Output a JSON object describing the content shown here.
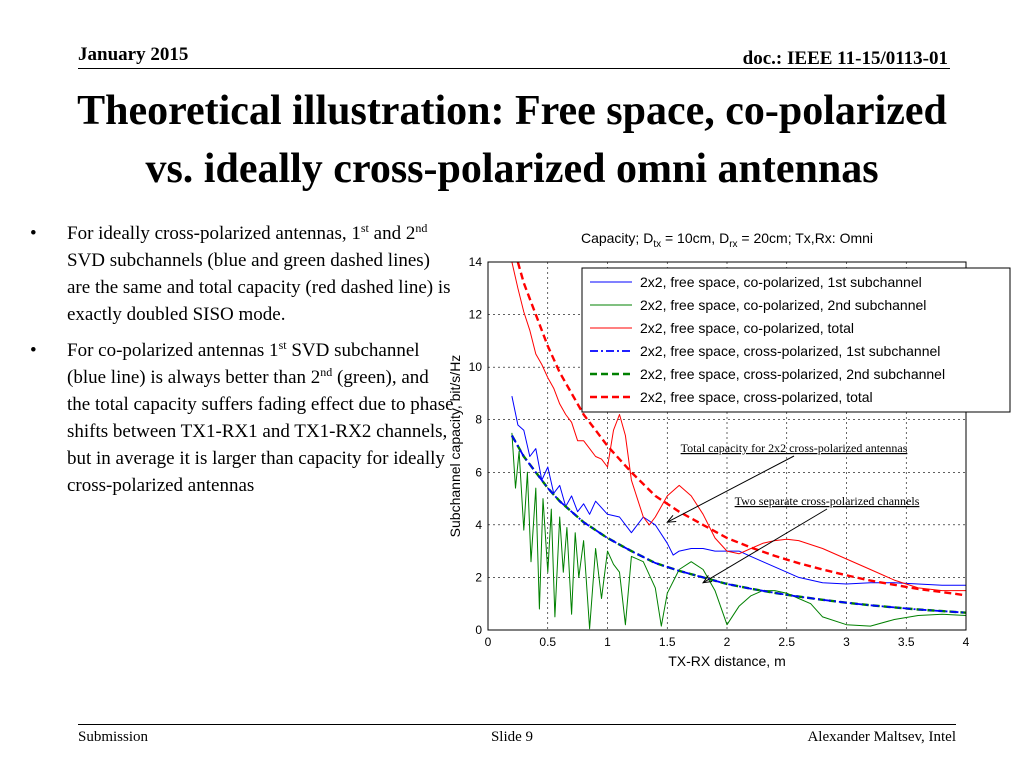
{
  "header": {
    "date": "January 2015",
    "doc": "doc.: IEEE 11-15/0113-01"
  },
  "title": {
    "line1": "Theoretical illustration: Free space, co-polarized",
    "line2": "vs. ideally cross-polarized omni antennas"
  },
  "bullets": [
    {
      "pre": "For ideally cross-polarized antennas, 1",
      "sup1": "st",
      "mid": " and 2",
      "sup2": "nd",
      "post": " SVD subchannels (blue and green dashed lines) are the same and total capacity (red dashed line) is exactly doubled SISO mode."
    },
    {
      "pre": "For co-polarized antennas 1",
      "sup1": "st",
      "mid": " SVD subchannel (blue line) is always better than 2",
      "sup2": "nd",
      "post": " (green), and the total capacity suffers fading effect due to phase shifts between TX1-RX1 and TX1-RX2 channels, but in average it is larger than capacity for ideally cross-polarized antennas"
    }
  ],
  "footer": {
    "left": "Submission",
    "center": "Slide 9",
    "right": "Alexander Maltsev, Intel"
  },
  "chart_data": {
    "type": "line",
    "title_parts": {
      "a": "Capacity; D",
      "a_sub": "tx",
      "b": " = 10cm, D",
      "b_sub": "rx",
      "c": " = 20cm; Tx,Rx: Omni"
    },
    "xlabel": "TX-RX distance, m",
    "ylabel": "Subchannel capacity, bit/s/Hz",
    "xlim": [
      0,
      4
    ],
    "ylim": [
      0,
      14
    ],
    "xticks": [
      "0",
      "0.5",
      "1",
      "1.5",
      "2",
      "2.5",
      "3",
      "3.5",
      "4"
    ],
    "yticks": [
      "0",
      "2",
      "4",
      "6",
      "8",
      "10",
      "12",
      "14"
    ],
    "grid": true,
    "legend_position": "top-right",
    "colors": {
      "blue": "#0000ff",
      "green": "#008000",
      "red": "#ff0000"
    },
    "series": [
      {
        "name": "2x2, free space, co-polarized, 1st subchannel",
        "style": "solid",
        "color": "blue",
        "x": [
          0.2,
          0.25,
          0.3,
          0.35,
          0.4,
          0.45,
          0.5,
          0.55,
          0.6,
          0.65,
          0.7,
          0.75,
          0.8,
          0.85,
          0.9,
          1.0,
          1.1,
          1.2,
          1.3,
          1.4,
          1.5,
          1.55,
          1.6,
          1.7,
          1.8,
          1.9,
          2.0,
          2.1,
          2.2,
          2.3,
          2.4,
          2.5,
          2.6,
          2.8,
          3.0,
          3.2,
          3.4,
          3.6,
          3.8,
          4.0
        ],
        "y": [
          8.9,
          7.8,
          7.6,
          6.6,
          6.9,
          5.7,
          6.2,
          5.2,
          5.5,
          4.7,
          5.1,
          4.5,
          4.8,
          4.4,
          4.9,
          4.4,
          4.3,
          3.7,
          4.3,
          4.0,
          3.3,
          2.85,
          3.0,
          3.1,
          3.1,
          3.0,
          3.0,
          3.0,
          2.8,
          2.6,
          2.4,
          2.2,
          2.0,
          1.8,
          1.75,
          1.8,
          1.8,
          1.75,
          1.7,
          1.7
        ]
      },
      {
        "name": "2x2, free space, co-polarized, 2nd subchannel",
        "style": "solid",
        "color": "green",
        "x": [
          0.2,
          0.23,
          0.26,
          0.3,
          0.33,
          0.36,
          0.4,
          0.43,
          0.46,
          0.5,
          0.53,
          0.56,
          0.6,
          0.63,
          0.66,
          0.7,
          0.73,
          0.76,
          0.8,
          0.85,
          0.9,
          0.95,
          1.0,
          1.05,
          1.1,
          1.15,
          1.2,
          1.3,
          1.4,
          1.45,
          1.5,
          1.6,
          1.7,
          1.8,
          1.9,
          2.0,
          2.1,
          2.2,
          2.3,
          2.4,
          2.5,
          2.6,
          2.7,
          2.8,
          3.0,
          3.2,
          3.4,
          3.6,
          3.8,
          4.0
        ],
        "y": [
          7.5,
          5.4,
          6.8,
          3.8,
          6.0,
          2.6,
          5.4,
          0.8,
          5.0,
          2.2,
          4.6,
          0.5,
          4.3,
          2.2,
          3.9,
          0.6,
          3.7,
          2.0,
          3.4,
          0.05,
          3.1,
          1.2,
          3.0,
          2.5,
          2.2,
          0.2,
          2.8,
          2.6,
          1.6,
          0.15,
          1.4,
          2.3,
          2.6,
          2.3,
          1.5,
          0.2,
          0.9,
          1.3,
          1.5,
          1.5,
          1.4,
          1.2,
          1.0,
          0.5,
          0.2,
          0.15,
          0.4,
          0.55,
          0.6,
          0.55
        ]
      },
      {
        "name": "2x2, free space, co-polarized, total",
        "style": "solid",
        "color": "red",
        "x": [
          0.2,
          0.25,
          0.3,
          0.35,
          0.4,
          0.45,
          0.5,
          0.55,
          0.6,
          0.65,
          0.7,
          0.75,
          0.8,
          0.85,
          0.9,
          0.95,
          1.0,
          1.05,
          1.1,
          1.15,
          1.2,
          1.3,
          1.35,
          1.4,
          1.5,
          1.6,
          1.7,
          1.8,
          1.9,
          2.0,
          2.1,
          2.2,
          2.3,
          2.4,
          2.5,
          2.6,
          2.8,
          3.0,
          3.2,
          3.4,
          3.6,
          3.8,
          4.0
        ],
        "y": [
          14.0,
          13.0,
          12.1,
          11.4,
          10.5,
          10.1,
          9.6,
          9.2,
          8.6,
          8.2,
          7.9,
          7.2,
          7.2,
          6.9,
          6.6,
          6.5,
          6.2,
          7.6,
          8.2,
          7.4,
          5.7,
          4.3,
          4.0,
          4.3,
          5.1,
          5.5,
          5.1,
          4.4,
          3.5,
          3.0,
          2.9,
          3.1,
          3.3,
          3.4,
          3.45,
          3.4,
          3.1,
          2.7,
          2.3,
          1.9,
          1.6,
          1.5,
          1.5
        ]
      },
      {
        "name": "2x2, free space, cross-polarized, 1st subchannel",
        "style": "dashdot",
        "color": "blue",
        "x": [
          0.2,
          0.3,
          0.4,
          0.5,
          0.6,
          0.7,
          0.8,
          0.9,
          1.0,
          1.2,
          1.4,
          1.6,
          1.8,
          2.0,
          2.2,
          2.4,
          2.6,
          2.8,
          3.0,
          3.2,
          3.4,
          3.6,
          3.8,
          4.0
        ],
        "y": [
          7.4,
          6.6,
          6.0,
          5.4,
          4.9,
          4.5,
          4.1,
          3.8,
          3.5,
          3.0,
          2.55,
          2.25,
          2.0,
          1.75,
          1.57,
          1.41,
          1.27,
          1.15,
          1.04,
          0.94,
          0.86,
          0.78,
          0.72,
          0.66
        ]
      },
      {
        "name": "2x2, free space, cross-polarized, 2nd subchannel",
        "style": "dashed",
        "color": "green",
        "x": [
          0.2,
          0.3,
          0.4,
          0.5,
          0.6,
          0.7,
          0.8,
          0.9,
          1.0,
          1.2,
          1.4,
          1.6,
          1.8,
          2.0,
          2.2,
          2.4,
          2.6,
          2.8,
          3.0,
          3.2,
          3.4,
          3.6,
          3.8,
          4.0
        ],
        "y": [
          7.4,
          6.6,
          6.0,
          5.4,
          4.9,
          4.5,
          4.1,
          3.8,
          3.5,
          3.0,
          2.55,
          2.25,
          2.0,
          1.75,
          1.57,
          1.41,
          1.27,
          1.15,
          1.04,
          0.94,
          0.86,
          0.78,
          0.72,
          0.66
        ]
      },
      {
        "name": "2x2, free space, cross-polarized, total",
        "style": "dashed",
        "color": "red",
        "x": [
          0.2,
          0.3,
          0.4,
          0.5,
          0.6,
          0.7,
          0.8,
          0.9,
          1.0,
          1.2,
          1.4,
          1.6,
          1.8,
          2.0,
          2.2,
          2.4,
          2.6,
          2.8,
          3.0,
          3.2,
          3.4,
          3.6,
          3.8,
          4.0
        ],
        "y": [
          14.8,
          13.2,
          12.0,
          10.8,
          9.8,
          9.0,
          8.2,
          7.6,
          7.0,
          6.0,
          5.1,
          4.5,
          4.0,
          3.5,
          3.14,
          2.82,
          2.54,
          2.3,
          2.08,
          1.88,
          1.72,
          1.56,
          1.44,
          1.32
        ]
      }
    ],
    "annotations": [
      {
        "text": "Total capacity for 2x2 cross-polarized antennas",
        "arrow_to": [
          1.5,
          4.1
        ]
      },
      {
        "text": "Two separate cross-polarized channels",
        "arrow_to": [
          1.8,
          1.8
        ]
      }
    ]
  }
}
